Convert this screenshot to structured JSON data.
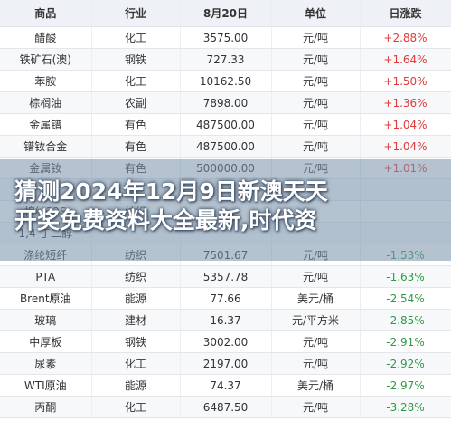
{
  "table": {
    "headers": [
      "商品",
      "行业",
      "8月20日",
      "单位",
      "日涨跌"
    ],
    "rows": [
      {
        "name": "醋酸",
        "industry": "化工",
        "price": "3575.00",
        "unit": "元/吨",
        "change": "+2.88%",
        "dir": "up"
      },
      {
        "name": "铁矿石(澳)",
        "industry": "钢铁",
        "price": "727.33",
        "unit": "元/吨",
        "change": "+1.64%",
        "dir": "up"
      },
      {
        "name": "苯胺",
        "industry": "化工",
        "price": "10162.50",
        "unit": "元/吨",
        "change": "+1.50%",
        "dir": "up"
      },
      {
        "name": "棕榈油",
        "industry": "农副",
        "price": "7898.00",
        "unit": "元/吨",
        "change": "+1.36%",
        "dir": "up"
      },
      {
        "name": "金属镨",
        "industry": "有色",
        "price": "487500.00",
        "unit": "元/吨",
        "change": "+1.04%",
        "dir": "up"
      },
      {
        "name": "镨钕合金",
        "industry": "有色",
        "price": "487500.00",
        "unit": "元/吨",
        "change": "+1.04%",
        "dir": "up"
      },
      {
        "name": "金属钕",
        "industry": "有色",
        "price": "500000.00",
        "unit": "元/吨",
        "change": "+1.01%",
        "dir": "up"
      },
      {
        "name": "",
        "industry": "",
        "price": "",
        "unit": "",
        "change": "",
        "dir": "down"
      },
      {
        "name": "棉纱32S",
        "industry": "纺织",
        "price": "",
        "unit": "",
        "change": "",
        "dir": "down"
      },
      {
        "name": "1,4-丁二醇",
        "industry": "",
        "price": "",
        "unit": "",
        "change": "",
        "dir": "down"
      },
      {
        "name": "涤纶短纤",
        "industry": "纺织",
        "price": "7501.67",
        "unit": "元/吨",
        "change": "-1.53%",
        "dir": "down"
      },
      {
        "name": "PTA",
        "industry": "纺织",
        "price": "5357.78",
        "unit": "元/吨",
        "change": "-1.63%",
        "dir": "down"
      },
      {
        "name": "Brent原油",
        "industry": "能源",
        "price": "77.66",
        "unit": "美元/桶",
        "change": "-2.54%",
        "dir": "down"
      },
      {
        "name": "玻璃",
        "industry": "建材",
        "price": "16.37",
        "unit": "元/平方米",
        "change": "-2.85%",
        "dir": "down"
      },
      {
        "name": "中厚板",
        "industry": "钢铁",
        "price": "3002.00",
        "unit": "元/吨",
        "change": "-2.91%",
        "dir": "down"
      },
      {
        "name": "尿素",
        "industry": "化工",
        "price": "2197.00",
        "unit": "元/吨",
        "change": "-2.92%",
        "dir": "down"
      },
      {
        "name": "WTI原油",
        "industry": "能源",
        "price": "74.37",
        "unit": "美元/桶",
        "change": "-2.97%",
        "dir": "down"
      },
      {
        "name": "丙酮",
        "industry": "化工",
        "price": "6487.50",
        "unit": "元/吨",
        "change": "-3.28%",
        "dir": "down"
      }
    ]
  },
  "overlay": {
    "line1": "猜测2024年12月9日新澳天天",
    "line2": "开奖免费资料大全最新,时代资"
  },
  "colors": {
    "up": "#e03a3a",
    "down": "#2f9a46",
    "header_bg": "#eef1f5"
  }
}
